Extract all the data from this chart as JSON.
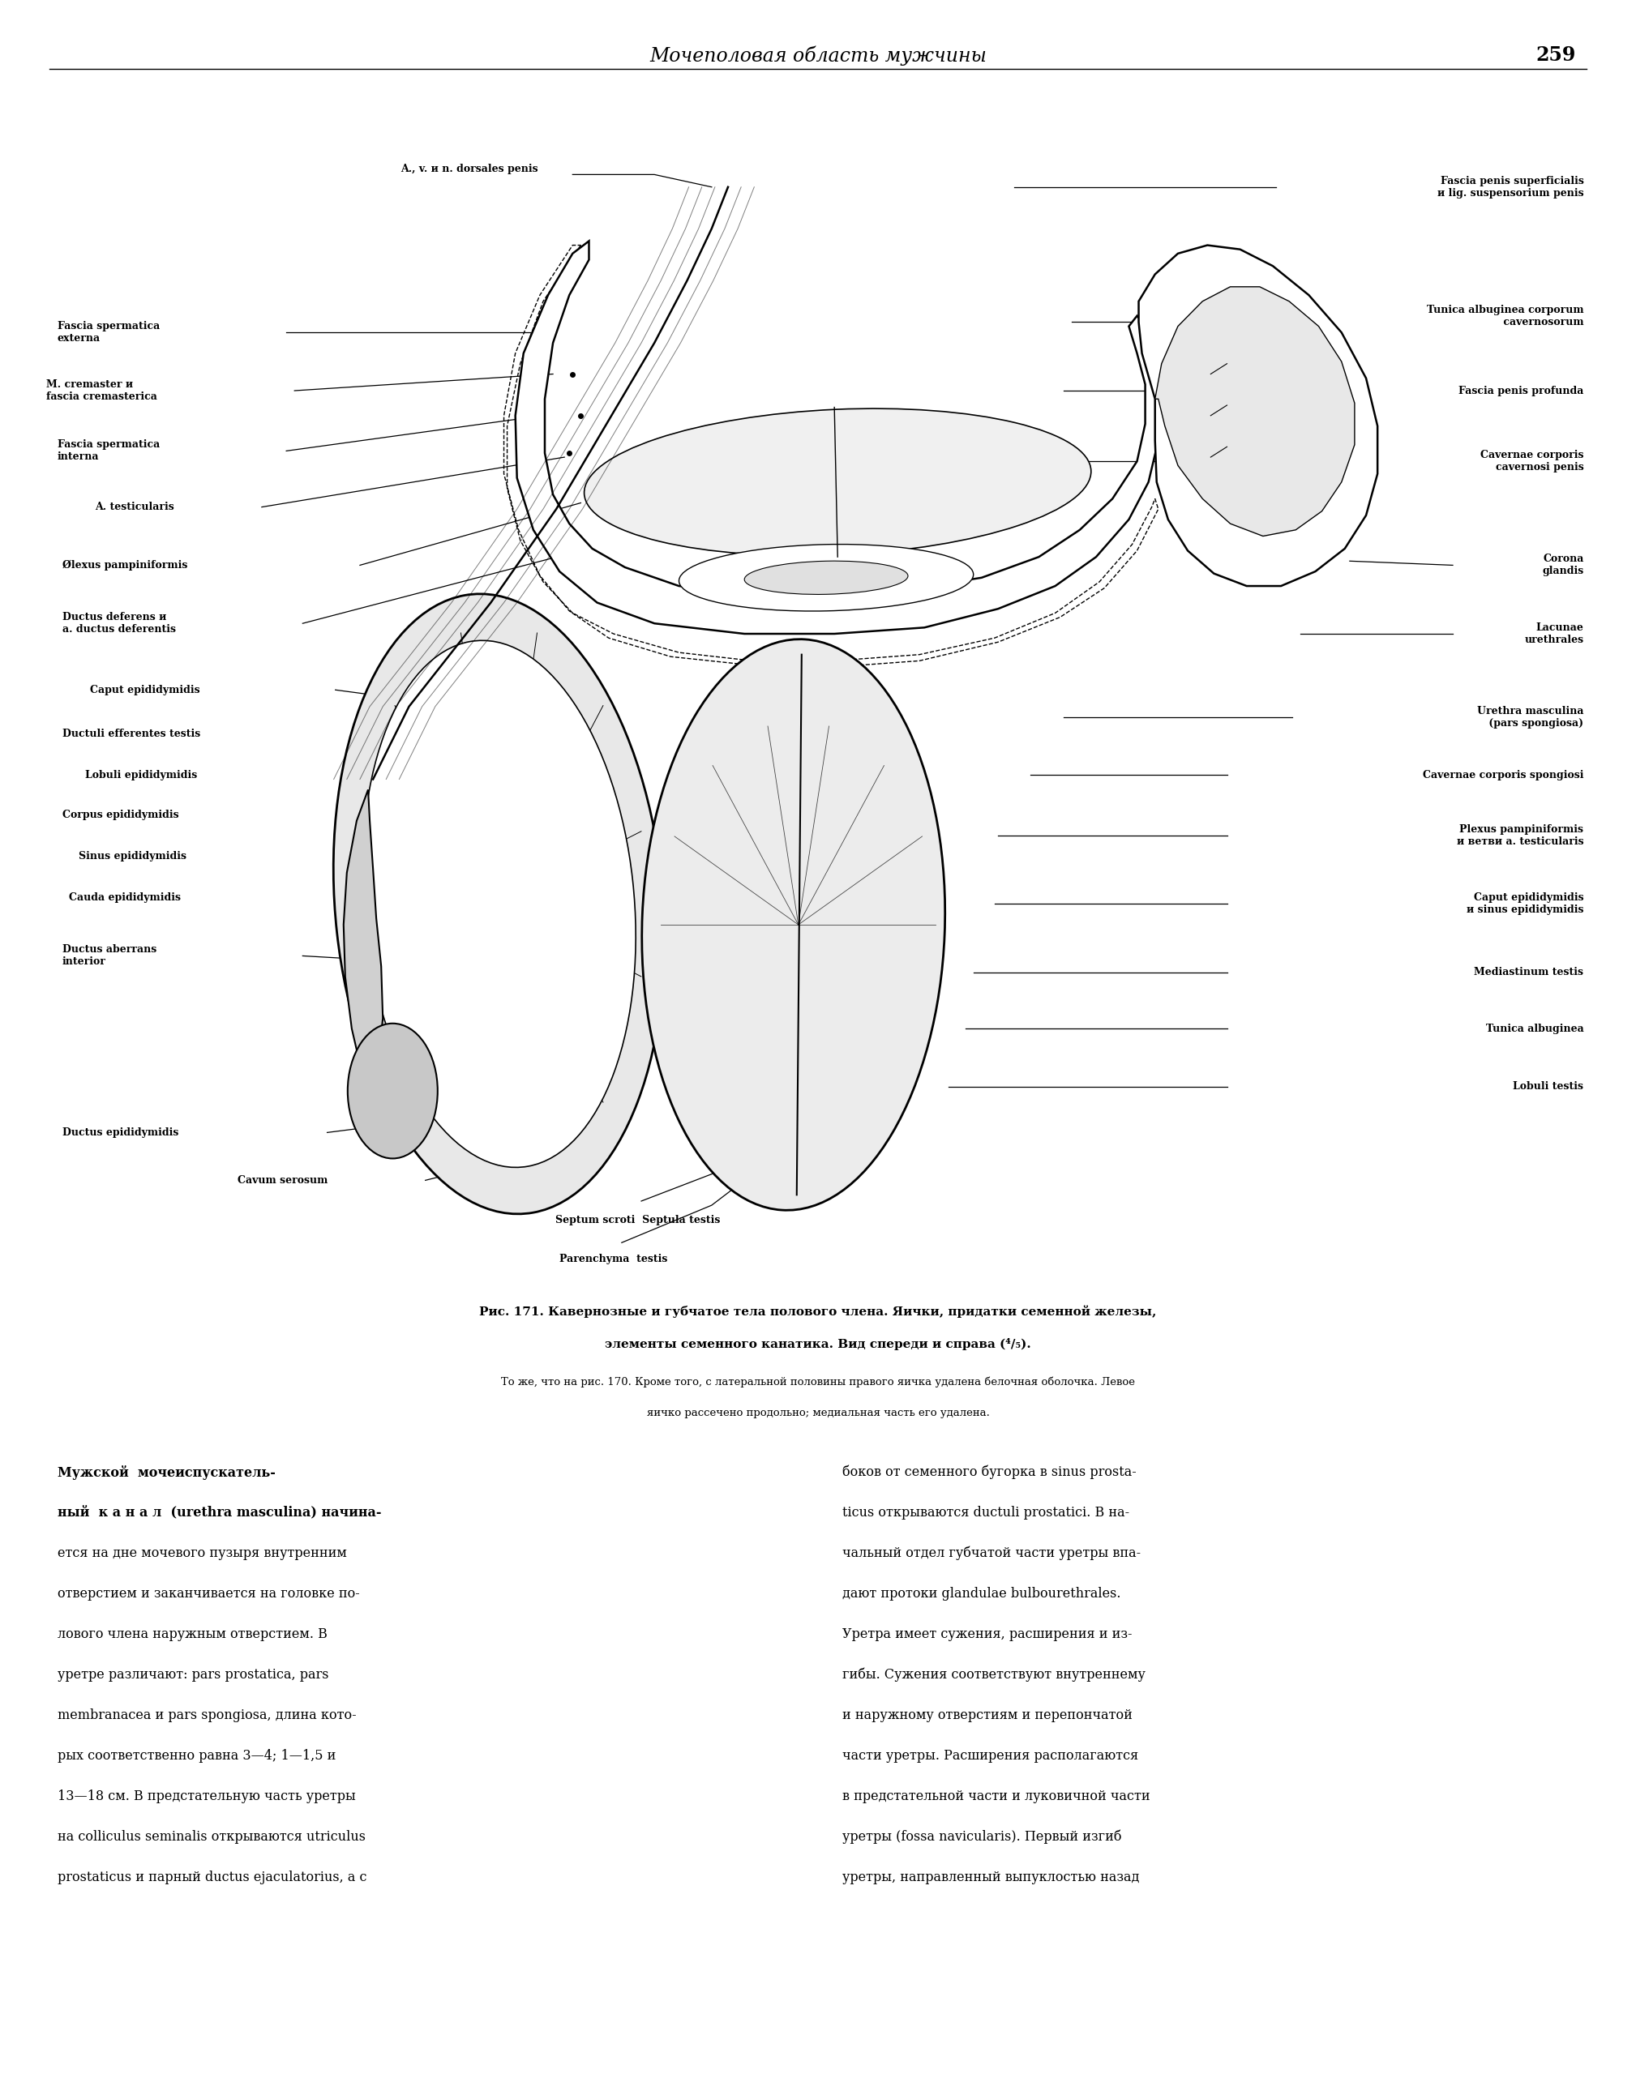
{
  "page_number": "259",
  "header_title": "Мочеполовая область мужчины",
  "fig_cap1": "Рис. 171. Кавернозные и губчатое тела полового члена. Яички, придатки семенной железы,",
  "fig_cap2": "элементы семенного канатика. Вид спереди и справа (⁴/₅).",
  "fig_sub1": "То же, что на рис. 170. Кроме того, с латеральной половины правого яичка удалена белочная оболочка. Левое",
  "fig_sub2": "яичко рассечено продольно; медиальная часть его удалена.",
  "body_left": [
    "Мужской  мочеиспускатель-",
    "ный  к а н а л  (urethra masculina) начина-",
    "ется на дне мочевого пузыря внутренним",
    "отверстием и заканчивается на головке по-",
    "лового члена наружным отверстием. В",
    "уретре различают: pars prostatica, pars",
    "membranacea и pars spongiosa, длина кото-",
    "рых соответственно равна 3—4; 1—1,5 и",
    "13—18 см. В предстательную часть уретры",
    "на colliculus seminalis открываются utriculus",
    "prostaticus и парный ductus ejaculatorius, а с"
  ],
  "body_right": [
    "боков от семенного бугорка в sinus prosta-",
    "ticus открываются ductuli prostatici. В на-",
    "чальный отдел губчатой части уретры впа-",
    "дают протоки glandulae bulbourethrales.",
    "Уретра имеет сужения, расширения и из-",
    "гибы. Сужения соответствуют внутреннему",
    "и наружному отверстиям и перепончатой",
    "части уретры. Расширения располагаются",
    "в предстательной части и луковичной части",
    "уретры (fossa navicularis). Первый изгиб",
    "уретры, направленный выпуклостью назад"
  ],
  "bg": "#ffffff",
  "black": "#000000"
}
